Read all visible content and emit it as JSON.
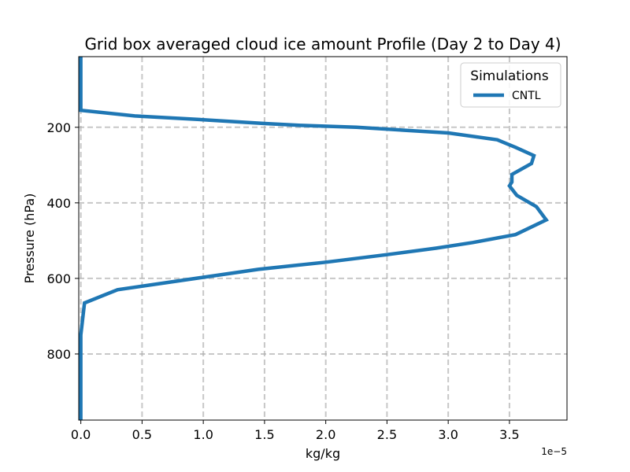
{
  "chart_data": {
    "type": "line",
    "title": "Grid box averaged cloud ice amount Profile (Day 2 to Day 4)",
    "xlabel": "kg/kg",
    "ylabel": "Pressure (hPa)",
    "x_offset_label": "1e−5",
    "xlim": [
      -1.7e-07,
      3.97e-05
    ],
    "ylim": [
      975,
      13
    ],
    "y_inverted": true,
    "grid": true,
    "x_ticks": [
      0,
      5e-06,
      1e-05,
      1.5e-05,
      2e-05,
      2.5e-05,
      3e-05,
      3.5e-05
    ],
    "x_tick_labels": [
      "0.0",
      "0.5",
      "1.0",
      "1.5",
      "2.0",
      "2.5",
      "3.0",
      "3.5"
    ],
    "y_ticks": [
      200,
      400,
      600,
      800
    ],
    "y_tick_labels": [
      "200",
      "400",
      "600",
      "800"
    ],
    "legend": {
      "title": "Simulations",
      "position": "upper right",
      "entries": [
        "CNTL"
      ]
    },
    "series": [
      {
        "name": "CNTL",
        "color": "#1f77b4",
        "x": [
          0,
          0,
          0,
          4.4e-06,
          1e-05,
          1.5e-05,
          1.8e-05,
          2.25e-05,
          3e-05,
          3.4e-05,
          3.55e-05,
          3.7e-05,
          3.68e-05,
          3.52e-05,
          3.52e-05,
          3.5e-05,
          3.56e-05,
          3.72e-05,
          3.8e-05,
          3.55e-05,
          3.2e-05,
          2.9e-05,
          2.5e-05,
          2e-05,
          1.45e-05,
          1e-05,
          3e-06,
          3e-07,
          0,
          0
        ],
        "y": [
          13,
          100,
          155,
          170,
          180,
          190,
          195,
          200,
          215,
          233,
          253,
          275,
          296,
          325,
          345,
          355,
          380,
          410,
          445,
          484,
          505,
          520,
          537,
          557,
          576,
          597,
          630,
          665,
          750,
          975
        ]
      }
    ]
  }
}
